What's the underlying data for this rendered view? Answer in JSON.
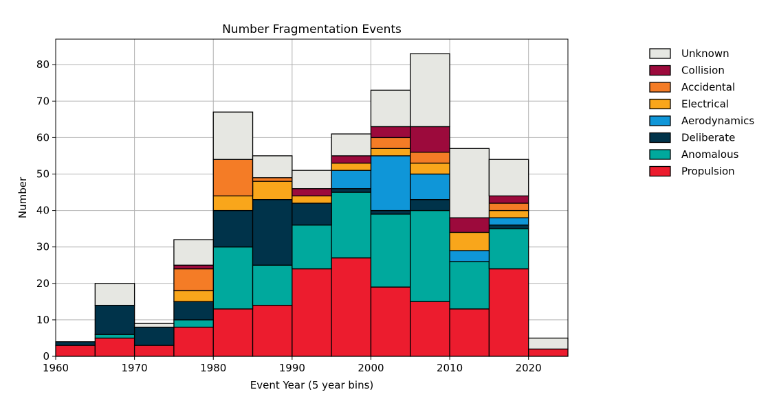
{
  "chart_data": {
    "type": "bar",
    "stacked": true,
    "title": "Number Fragmentation Events",
    "xlabel": "Event Year (5 year bins)",
    "ylabel": "Number",
    "xlim": [
      1960,
      2025
    ],
    "ylim": [
      0,
      87
    ],
    "xticks": [
      1960,
      1970,
      1980,
      1990,
      2000,
      2010,
      2020
    ],
    "yticks": [
      0,
      10,
      20,
      30,
      40,
      50,
      60,
      70,
      80
    ],
    "grid": true,
    "legend_position": "right",
    "bins": [
      1960,
      1965,
      1970,
      1975,
      1980,
      1985,
      1990,
      1995,
      2000,
      2005,
      2010,
      2015,
      2020
    ],
    "bin_width": 5,
    "series": [
      {
        "name": "Propulsion",
        "color": "#ec1c2e",
        "values": [
          3,
          5,
          3,
          8,
          13,
          14,
          24,
          27,
          19,
          15,
          13,
          24,
          2
        ]
      },
      {
        "name": "Anomalous",
        "color": "#00a99d",
        "values": [
          0,
          1,
          0,
          2,
          17,
          11,
          12,
          18,
          20,
          25,
          13,
          11,
          0
        ]
      },
      {
        "name": "Deliberate",
        "color": "#00334a",
        "values": [
          1,
          8,
          5,
          5,
          10,
          18,
          6,
          1,
          1,
          3,
          0,
          1,
          0
        ]
      },
      {
        "name": "Aerodynamics",
        "color": "#0f96d8",
        "values": [
          0,
          0,
          0,
          0,
          0,
          0,
          0,
          5,
          15,
          7,
          3,
          2,
          0
        ]
      },
      {
        "name": "Electrical",
        "color": "#f9a61b",
        "values": [
          0,
          0,
          0,
          3,
          4,
          5,
          2,
          2,
          2,
          3,
          5,
          2,
          0
        ]
      },
      {
        "name": "Accidental",
        "color": "#f47c26",
        "values": [
          0,
          0,
          0,
          6,
          10,
          1,
          0,
          0,
          3,
          3,
          0,
          2,
          0
        ]
      },
      {
        "name": "Collision",
        "color": "#9c0a3c",
        "values": [
          0,
          0,
          0,
          1,
          0,
          0,
          2,
          2,
          3,
          7,
          4,
          2,
          0
        ]
      },
      {
        "name": "Unknown",
        "color": "#e6e7e2",
        "values": [
          0,
          6,
          1,
          7,
          13,
          6,
          5,
          6,
          10,
          20,
          19,
          10,
          3
        ]
      }
    ],
    "legend_order": [
      "Unknown",
      "Collision",
      "Accidental",
      "Electrical",
      "Aerodynamics",
      "Deliberate",
      "Anomalous",
      "Propulsion"
    ]
  }
}
